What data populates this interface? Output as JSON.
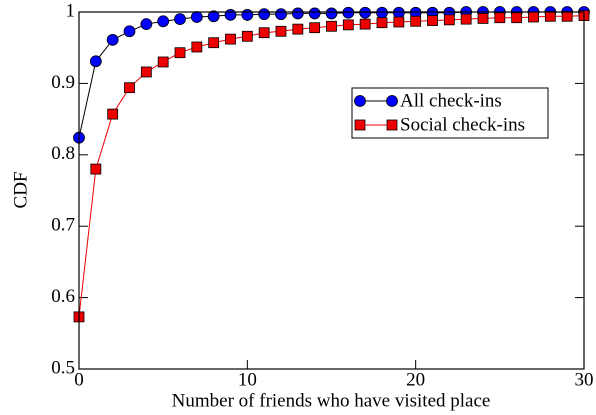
{
  "chart_data": {
    "type": "line",
    "xlabel": "Number of friends who have visited place",
    "ylabel": "CDF",
    "x": [
      0,
      1,
      2,
      3,
      4,
      5,
      6,
      7,
      8,
      9,
      10,
      11,
      12,
      13,
      14,
      15,
      16,
      17,
      18,
      19,
      20,
      21,
      22,
      23,
      24,
      25,
      26,
      27,
      28,
      29,
      30
    ],
    "series": [
      {
        "name": "All check-ins",
        "color": "#0000ff",
        "line_color": "#000000",
        "marker": "circle",
        "values": [
          0.824,
          0.931,
          0.961,
          0.973,
          0.983,
          0.987,
          0.99,
          0.993,
          0.994,
          0.996,
          0.996,
          0.997,
          0.997,
          0.998,
          0.998,
          0.998,
          0.999,
          0.999,
          0.999,
          0.999,
          0.999,
          0.999,
          0.999,
          1.0,
          1.0,
          1.0,
          1.0,
          1.0,
          1.0,
          1.0,
          1.0
        ]
      },
      {
        "name": "Social check-ins",
        "color": "#ee0000",
        "line_color": "#ee0000",
        "marker": "square",
        "values": [
          0.573,
          0.78,
          0.857,
          0.894,
          0.916,
          0.93,
          0.943,
          0.951,
          0.957,
          0.962,
          0.966,
          0.971,
          0.973,
          0.976,
          0.978,
          0.98,
          0.982,
          0.983,
          0.985,
          0.986,
          0.987,
          0.988,
          0.989,
          0.99,
          0.991,
          0.992,
          0.992,
          0.993,
          0.994,
          0.994,
          0.995
        ]
      }
    ],
    "xlim": [
      0,
      30
    ],
    "xticks": [
      0,
      10,
      20,
      30
    ],
    "ylim": [
      0.5,
      1
    ],
    "yticks": [
      0.5,
      0.6,
      0.7,
      0.8,
      0.9,
      1
    ],
    "legend": "upper right"
  }
}
